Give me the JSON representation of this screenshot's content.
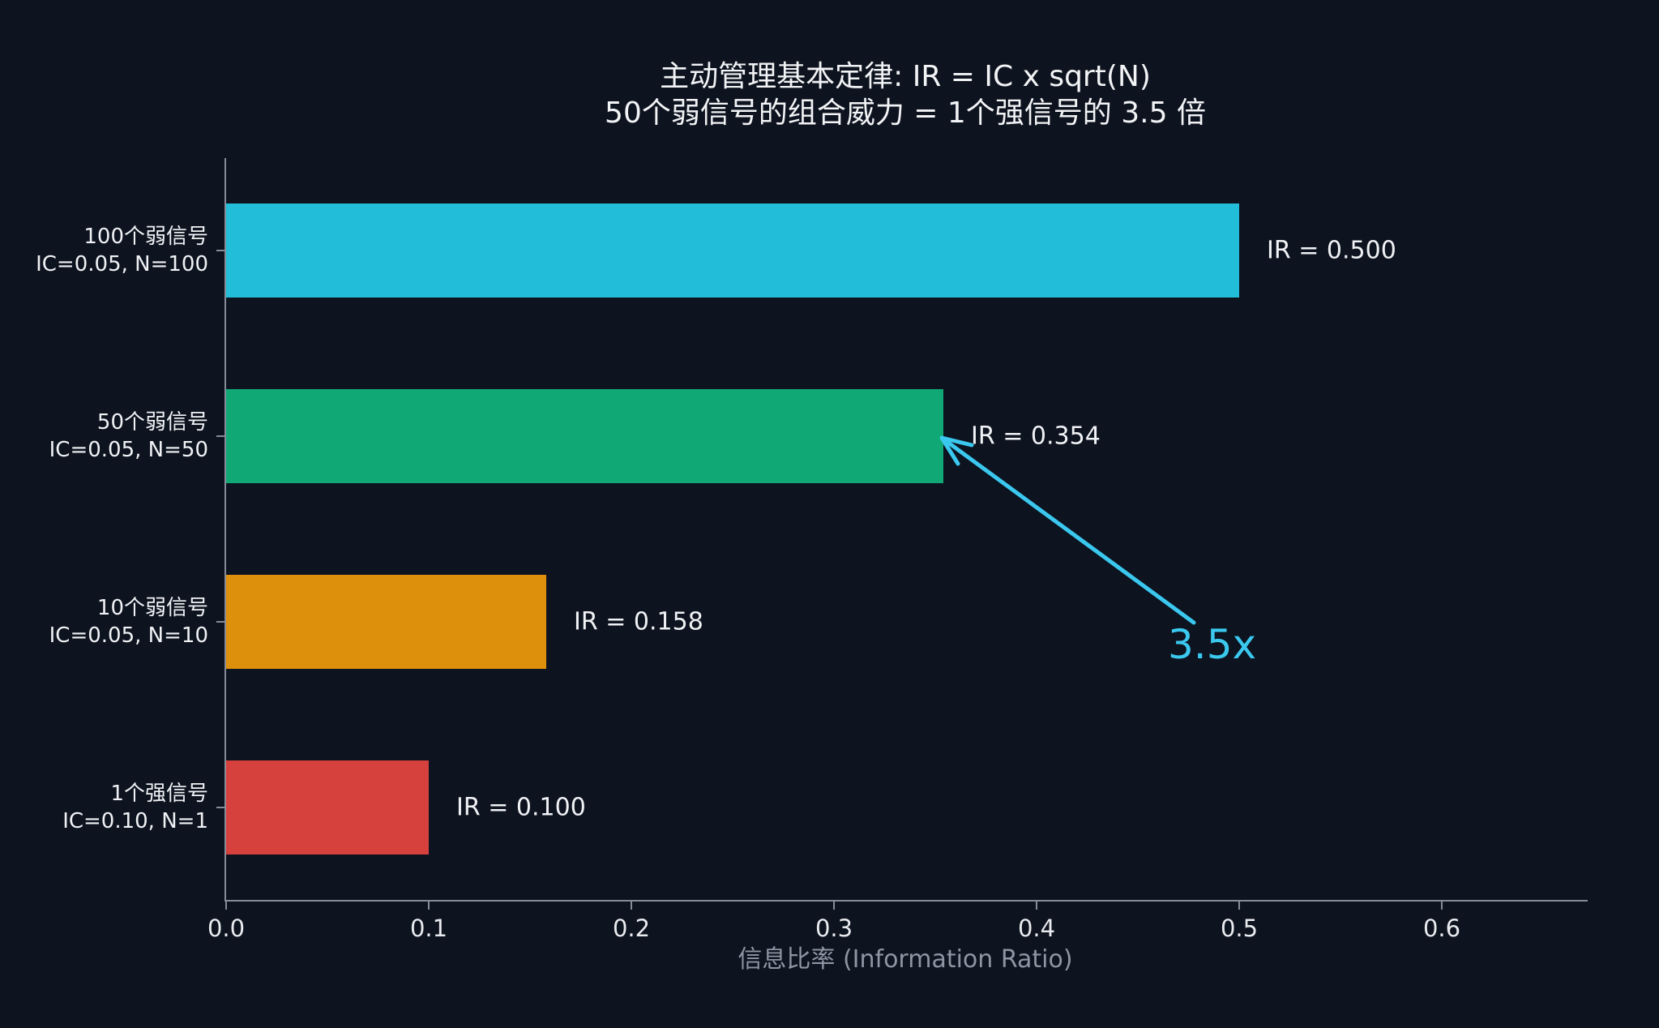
{
  "chart_data": {
    "type": "bar",
    "orientation": "horizontal",
    "title": "主动管理基本定律: IR = IC x sqrt(N)",
    "subtitle": "50个弱信号的组合威力 = 1个强信号的 3.5 倍",
    "xlabel": "信息比率 (Information Ratio)",
    "xlim": [
      0,
      0.672
    ],
    "x_ticks": [
      0.0,
      0.1,
      0.2,
      0.3,
      0.4,
      0.5,
      0.6
    ],
    "x_tick_labels": [
      "0.0",
      "0.1",
      "0.2",
      "0.3",
      "0.4",
      "0.5",
      "0.6"
    ],
    "grid": false,
    "legend": false,
    "bars": [
      {
        "label_line1": "100个弱信号",
        "label_line2": "IC=0.05, N=100",
        "value": 0.5,
        "value_label": "IR = 0.500",
        "color": "#22bdd8"
      },
      {
        "label_line1": "50个弱信号",
        "label_line2": "IC=0.05, N=50",
        "value": 0.354,
        "value_label": "IR = 0.354",
        "color": "#10a874"
      },
      {
        "label_line1": "10个弱信号",
        "label_line2": "IC=0.05, N=10",
        "value": 0.158,
        "value_label": "IR = 0.158",
        "color": "#dd900b"
      },
      {
        "label_line1": "1个强信号",
        "label_line2": "IC=0.10, N=1",
        "value": 0.1,
        "value_label": "IR = 0.100",
        "color": "#d6413e"
      }
    ],
    "annotation": {
      "text": "3.5x",
      "color": "#3bc8ef"
    }
  },
  "colors": {
    "background": "#0d131f",
    "axis": "#878d98",
    "tick_label": "#e9ebef",
    "value_label": "#f0f2f5",
    "title": "#f2f3f5",
    "xlabel": "#8e95a3"
  }
}
